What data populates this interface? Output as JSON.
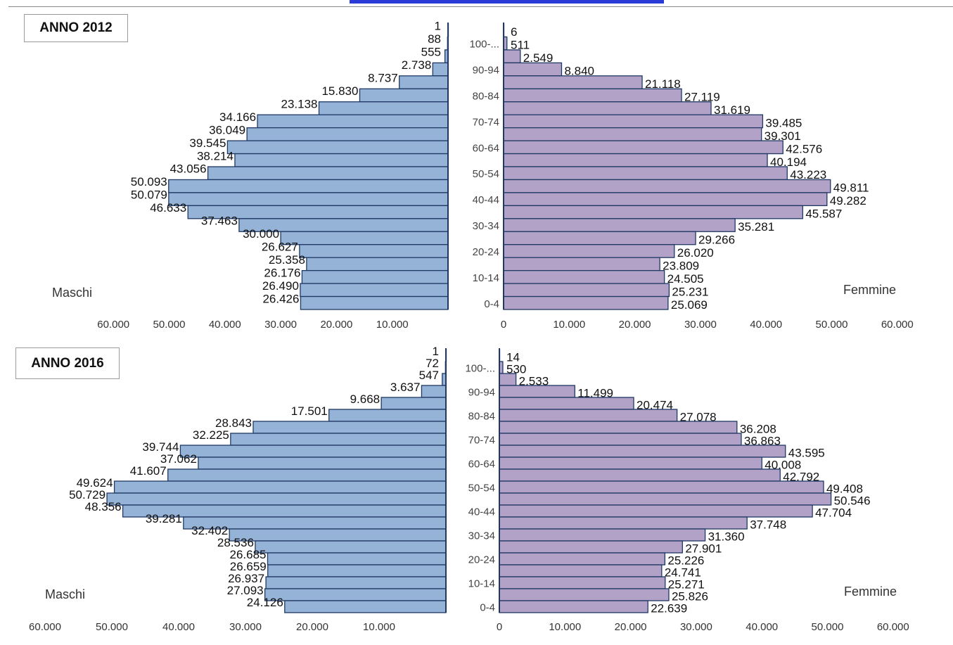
{
  "chart_data": [
    {
      "type": "bar",
      "title": "ANNO 2012",
      "male_label": "Maschi",
      "female_label": "Femmine",
      "age_labels_shown": [
        "100-...",
        "90-94",
        "80-84",
        "70-74",
        "60-64",
        "50-54",
        "40-44",
        "30-34",
        "20-24",
        "10-14",
        "0-4"
      ],
      "x_ticks_male": [
        "60.000",
        "50.000",
        "40.000",
        "30.000",
        "20.000",
        "10.000"
      ],
      "x_ticks_female": [
        "0",
        "10.000",
        "20.000",
        "30.000",
        "40.000",
        "50.000",
        "60.000"
      ],
      "xlim": [
        0,
        60000
      ],
      "colors": {
        "male": "#95b3d7",
        "female": "#b3a2c7",
        "outline": "#1f3864"
      },
      "male_values": [
        1,
        88,
        555,
        2738,
        8737,
        15830,
        23138,
        34166,
        36049,
        39545,
        38214,
        43056,
        50093,
        50079,
        46633,
        37463,
        30000,
        26627,
        25358,
        26176,
        26490,
        26426
      ],
      "male_labels": [
        "1",
        "88",
        "555",
        "2.738",
        "8.737",
        "15.830",
        "23.138",
        "34.166",
        "36.049",
        "39.545",
        "38.214",
        "43.056",
        "50.093",
        "50.079",
        "46.633",
        "37.463",
        "30.000",
        "26.627",
        "25.358",
        "26.176",
        "26.490",
        "26.426"
      ],
      "female_values": [
        6,
        511,
        2549,
        8840,
        21118,
        27119,
        31619,
        39485,
        39301,
        42576,
        40194,
        43223,
        49811,
        49282,
        45587,
        35281,
        29266,
        26020,
        23809,
        24505,
        25231,
        25069
      ],
      "female_labels": [
        "6",
        "511",
        "2.549",
        "8.840",
        "21.118",
        "27.119",
        "31.619",
        "39.485",
        "39.301",
        "42.576",
        "40.194",
        "43.223",
        "49.811",
        "49.282",
        "45.587",
        "35.281",
        "29.266",
        "26.020",
        "23.809",
        "24.505",
        "25.231",
        "25.069"
      ]
    },
    {
      "type": "bar",
      "title": "ANNO 2016",
      "male_label": "Maschi",
      "female_label": "Femmine",
      "age_labels_shown": [
        "100-...",
        "90-94",
        "80-84",
        "70-74",
        "60-64",
        "50-54",
        "40-44",
        "30-34",
        "20-24",
        "10-14",
        "0-4"
      ],
      "x_ticks_male": [
        "60.000",
        "50.000",
        "40.000",
        "30.000",
        "20.000",
        "10.000"
      ],
      "x_ticks_female": [
        "0",
        "10.000",
        "20.000",
        "30.000",
        "40.000",
        "50.000",
        "60.000"
      ],
      "xlim": [
        0,
        60000
      ],
      "colors": {
        "male": "#95b3d7",
        "female": "#b3a2c7",
        "outline": "#1f3864"
      },
      "male_values": [
        1,
        72,
        547,
        3637,
        9668,
        17501,
        28843,
        32225,
        39744,
        37062,
        41607,
        49624,
        50729,
        48356,
        39281,
        32402,
        28536,
        26685,
        26659,
        26937,
        27093,
        24126
      ],
      "male_labels": [
        "1",
        "72",
        "547",
        "3.637",
        "9.668",
        "17.501",
        "28.843",
        "32.225",
        "39.744",
        "37.062",
        "41.607",
        "49.624",
        "50.729",
        "48.356",
        "39.281",
        "32.402",
        "28.536",
        "26.685",
        "26.659",
        "26.937",
        "27.093",
        "24.126"
      ],
      "female_values": [
        14,
        530,
        2533,
        11499,
        20474,
        27078,
        36208,
        36863,
        43595,
        40008,
        42792,
        49408,
        50546,
        47704,
        37748,
        31360,
        27901,
        25226,
        24741,
        25271,
        25826,
        22639
      ],
      "female_labels": [
        "14",
        "530",
        "2.533",
        "11.499",
        "20.474",
        "27.078",
        "36.208",
        "36.863",
        "43.595",
        "40.008",
        "42.792",
        "49.408",
        "50.546",
        "47.704",
        "37.748",
        "31.360",
        "27.901",
        "25.226",
        "24.741",
        "25.271",
        "25.826",
        "22.639"
      ]
    }
  ]
}
